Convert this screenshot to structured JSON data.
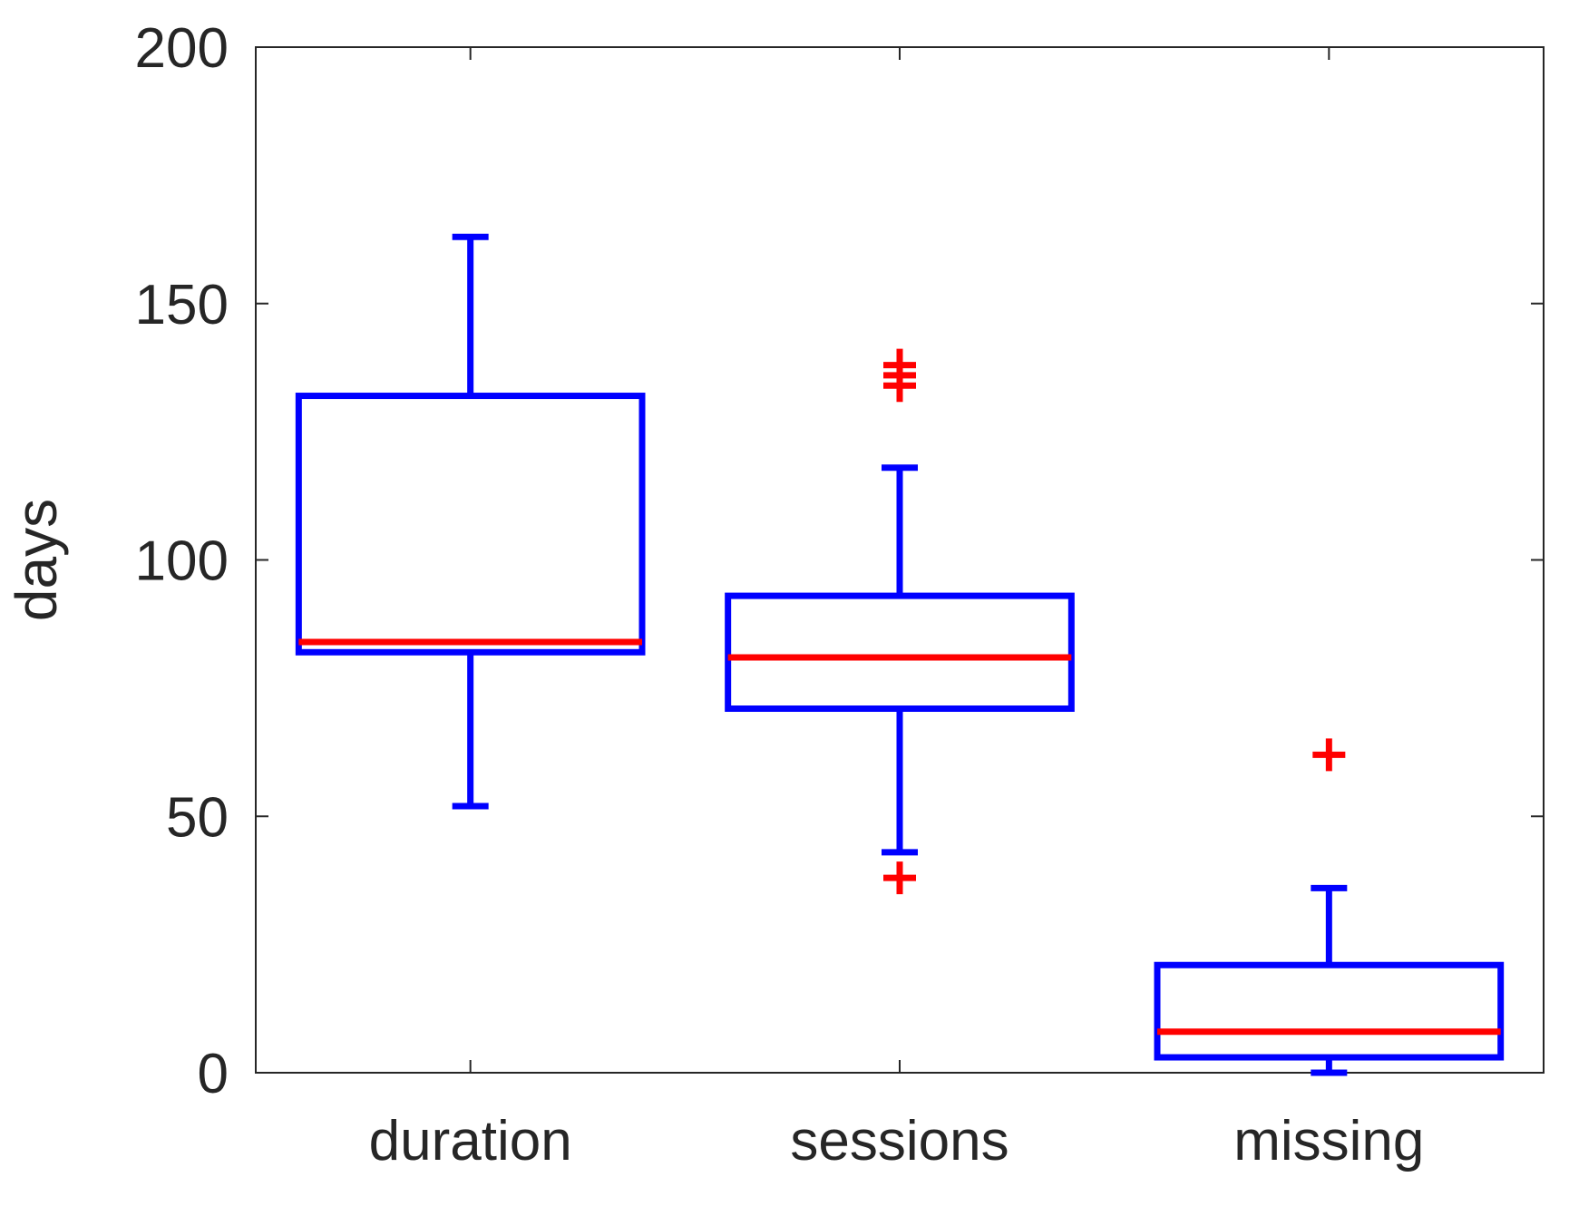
{
  "chart_data": {
    "type": "box",
    "title": "",
    "xlabel": "",
    "ylabel": "days",
    "ylim": [
      0,
      200
    ],
    "yticks": [
      0,
      50,
      100,
      150,
      200
    ],
    "grid": false,
    "categories": [
      "duration",
      "sessions",
      "missing"
    ],
    "boxes": [
      {
        "category": "duration",
        "whisker_low": 52,
        "q1": 82,
        "median": 84,
        "q3": 132,
        "whisker_high": 163,
        "outliers": []
      },
      {
        "category": "sessions",
        "whisker_low": 43,
        "q1": 71,
        "median": 81,
        "q3": 93,
        "whisker_high": 118,
        "outliers": [
          38,
          134,
          136,
          138
        ]
      },
      {
        "category": "missing",
        "whisker_low": 0,
        "q1": 3,
        "median": 8,
        "q3": 21,
        "whisker_high": 36,
        "outliers": [
          62
        ]
      }
    ],
    "colors": {
      "box": "#0000ff",
      "median": "#ff0000",
      "outlier": "#ff0000",
      "axis": "#262626"
    }
  }
}
